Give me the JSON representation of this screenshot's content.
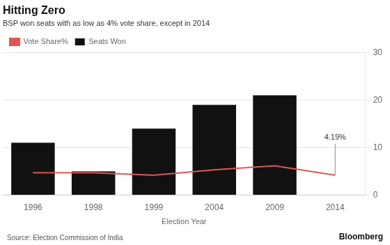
{
  "chart_data": {
    "type": "bar",
    "title": "Hitting Zero",
    "subtitle": "BSP won seats with as low as 4% vote share, except in 2014",
    "source": "Source: Election Commission of India",
    "credit": "Bloomberg",
    "xlabel": "Election Year",
    "categories": [
      "1996",
      "1998",
      "1999",
      "2004",
      "2009",
      "2014"
    ],
    "series": [
      {
        "name": "Seats Won",
        "type": "bar",
        "color": "#111111",
        "values": [
          11,
          5,
          14,
          19,
          21,
          0
        ]
      },
      {
        "name": "Vote Share%",
        "type": "line",
        "color": "#e05555",
        "values": [
          4.7,
          4.7,
          4.16,
          5.33,
          6.17,
          4.19
        ]
      }
    ],
    "ylim": [
      0,
      30
    ],
    "yticks": [
      0,
      10,
      20,
      30
    ],
    "grid": true,
    "legend": "upper left",
    "annotations": [
      {
        "text": "4.19%",
        "category": "2014",
        "series": "Vote Share%"
      }
    ]
  }
}
